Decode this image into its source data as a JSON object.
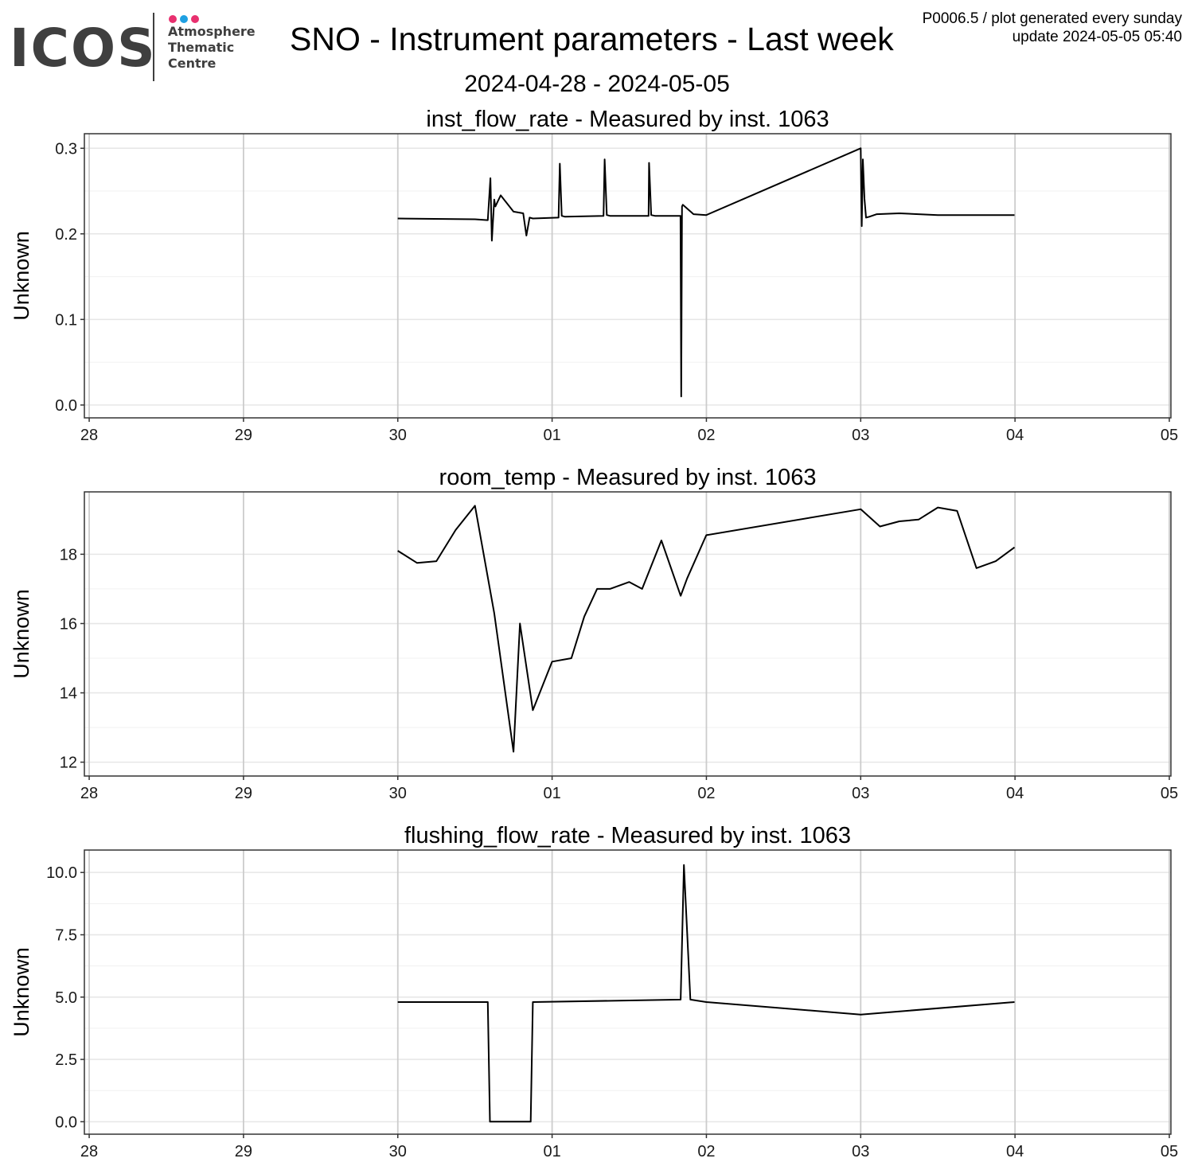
{
  "header": {
    "logo": {
      "word": "ICOS",
      "lines": [
        "Atmosphere",
        "Thematic",
        "Centre"
      ],
      "dot_colors": [
        "#e8306f",
        "#1fa0e2",
        "#e8306f"
      ],
      "text_color": "#3f3f3f"
    },
    "title": "SNO - Instrument parameters - Last week",
    "subtitle": "2024-04-28 - 2024-05-05",
    "meta_line1": "P0006.5 / plot generated every sunday",
    "meta_line2": "update  2024-05-05 05:40"
  },
  "chart_data": [
    {
      "type": "line",
      "title": "inst_flow_rate - Measured by inst. 1063",
      "ylabel": "Unknown",
      "x_ticks": [
        "28",
        "29",
        "30",
        "01",
        "02",
        "03",
        "04",
        "05"
      ],
      "xlim": [
        "2024-04-28",
        "2024-05-05"
      ],
      "ylim": [
        -0.015,
        0.317
      ],
      "y_ticks": [
        0.0,
        0.1,
        0.2,
        0.3
      ],
      "y_tick_labels": [
        "0.0",
        "0.1",
        "0.2",
        "0.3"
      ],
      "grid": true,
      "line_color": "#000000",
      "series": [
        {
          "x": [
            "2024-04-30T00:00",
            "2024-04-30T12:00",
            "2024-04-30T14:00",
            "2024-04-30T14:24",
            "2024-04-30T14:38",
            "2024-04-30T15:00",
            "2024-04-30T15:10",
            "2024-04-30T16:00",
            "2024-04-30T18:00",
            "2024-04-30T19:30",
            "2024-04-30T20:00",
            "2024-04-30T20:30",
            "2024-04-30T21:00",
            "2024-05-01T01:00",
            "2024-05-01T01:12",
            "2024-05-01T01:30",
            "2024-05-01T02:00",
            "2024-05-01T08:00",
            "2024-05-01T08:10",
            "2024-05-01T08:30",
            "2024-05-01T09:00",
            "2024-05-01T15:00",
            "2024-05-01T15:05",
            "2024-05-01T15:25",
            "2024-05-01T16:00",
            "2024-05-01T19:58",
            "2024-05-01T20:05",
            "2024-05-01T20:12",
            "2024-05-01T20:20",
            "2024-05-01T22:00",
            "2024-05-01T23:59",
            "2024-05-03T00:00",
            "2024-05-03T00:10",
            "2024-05-03T00:20",
            "2024-05-03T00:35",
            "2024-05-03T00:50",
            "2024-05-03T01:20",
            "2024-05-03T02:30",
            "2024-05-03T06:00",
            "2024-05-03T12:00",
            "2024-05-03T18:00",
            "2024-05-03T23:55"
          ],
          "y": [
            0.218,
            0.217,
            0.216,
            0.265,
            0.192,
            0.24,
            0.232,
            0.245,
            0.226,
            0.224,
            0.198,
            0.219,
            0.218,
            0.219,
            0.282,
            0.221,
            0.22,
            0.221,
            0.287,
            0.222,
            0.221,
            0.221,
            0.283,
            0.222,
            0.221,
            0.221,
            0.01,
            0.232,
            0.234,
            0.223,
            0.222,
            0.3,
            0.209,
            0.287,
            0.241,
            0.219,
            0.22,
            0.223,
            0.224,
            0.222,
            0.222,
            0.222
          ]
        }
      ]
    },
    {
      "type": "line",
      "title": "room_temp - Measured by inst. 1063",
      "ylabel": "Unknown",
      "x_ticks": [
        "28",
        "29",
        "30",
        "01",
        "02",
        "03",
        "04",
        "05"
      ],
      "xlim": [
        "2024-04-28",
        "2024-05-05"
      ],
      "ylim": [
        11.6,
        19.8
      ],
      "y_ticks": [
        12,
        14,
        16,
        18
      ],
      "y_tick_labels": [
        "12",
        "14",
        "16",
        "18"
      ],
      "grid": true,
      "line_color": "#000000",
      "series": [
        {
          "x": [
            "2024-04-30T00:00",
            "2024-04-30T03:00",
            "2024-04-30T06:00",
            "2024-04-30T09:00",
            "2024-04-30T12:00",
            "2024-04-30T15:00",
            "2024-04-30T18:00",
            "2024-04-30T19:00",
            "2024-04-30T21:00",
            "2024-05-01T00:00",
            "2024-05-01T03:00",
            "2024-05-01T05:00",
            "2024-05-01T07:00",
            "2024-05-01T09:00",
            "2024-05-01T12:00",
            "2024-05-01T14:00",
            "2024-05-01T17:00",
            "2024-05-01T20:00",
            "2024-05-01T21:00",
            "2024-05-01T23:59",
            "2024-05-03T00:00",
            "2024-05-03T03:00",
            "2024-05-03T06:00",
            "2024-05-03T09:00",
            "2024-05-03T12:00",
            "2024-05-03T15:00",
            "2024-05-03T18:00",
            "2024-05-03T21:00",
            "2024-05-03T23:55"
          ],
          "y": [
            18.1,
            17.75,
            17.8,
            18.7,
            19.4,
            16.3,
            12.3,
            16.0,
            13.5,
            14.9,
            15.0,
            16.2,
            17.0,
            17.0,
            17.2,
            17.0,
            18.4,
            16.8,
            17.3,
            18.55,
            19.3,
            18.8,
            18.95,
            19.0,
            19.35,
            19.25,
            17.6,
            17.8,
            18.2
          ]
        }
      ]
    },
    {
      "type": "line",
      "title": "flushing_flow_rate - Measured by inst. 1063",
      "ylabel": "Unknown",
      "x_ticks": [
        "28",
        "29",
        "30",
        "01",
        "02",
        "03",
        "04",
        "05"
      ],
      "xlim": [
        "2024-04-28",
        "2024-05-05"
      ],
      "ylim": [
        -0.5,
        10.9
      ],
      "y_ticks": [
        0.0,
        2.5,
        5.0,
        7.5,
        10.0
      ],
      "y_tick_labels": [
        "0.0",
        "2.5",
        "5.0",
        "7.5",
        "10.0"
      ],
      "grid": true,
      "line_color": "#000000",
      "series": [
        {
          "x": [
            "2024-04-30T00:00",
            "2024-04-30T14:00",
            "2024-04-30T14:20",
            "2024-04-30T20:40",
            "2024-04-30T21:00",
            "2024-05-01T20:00",
            "2024-05-01T20:30",
            "2024-05-01T21:30",
            "2024-05-01T23:59",
            "2024-05-03T00:00",
            "2024-05-03T23:55"
          ],
          "y": [
            4.8,
            4.8,
            0.0,
            0.0,
            4.8,
            4.9,
            10.3,
            4.9,
            4.8,
            4.3,
            4.8
          ]
        }
      ]
    }
  ]
}
